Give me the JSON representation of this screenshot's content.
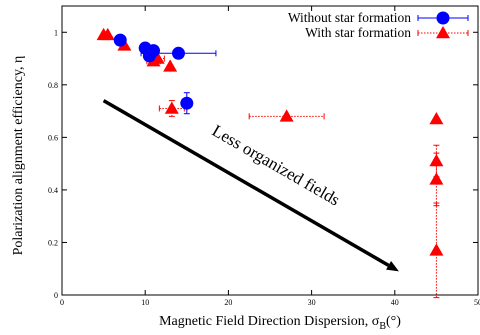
{
  "chart_data": {
    "type": "scatter",
    "xlabel": "Magnetic Field Direction Dispersion, σ",
    "xlabel_sub": "B",
    "xlabel_unit": "(°)",
    "ylabel": "Polarization alignment efficiency, η",
    "xlim": [
      0,
      50
    ],
    "ylim": [
      0,
      1.1
    ],
    "x_ticks": [
      0,
      10,
      20,
      30,
      40,
      50
    ],
    "x_tick_labels": [
      "0",
      "10",
      "20",
      "30",
      "40",
      "50"
    ],
    "y_ticks": [
      0,
      0.2,
      0.4,
      0.6,
      0.8,
      1.0
    ],
    "y_tick_labels": [
      "0",
      "0.2",
      "0.4",
      "0.6",
      "0.8",
      "1"
    ],
    "legend_position": "top-right",
    "annotation": {
      "text": "Less organized fields",
      "arrow_from": [
        5,
        0.74
      ],
      "arrow_to": [
        40.5,
        0.09
      ]
    },
    "series": [
      {
        "name": "Without star formation",
        "marker": "circle",
        "color": "#0000ff",
        "line_style": "solid",
        "points": [
          {
            "x": 7,
            "y": 0.97,
            "xerr": 0,
            "yerr": 0
          },
          {
            "x": 10,
            "y": 0.94,
            "xerr": 0.5,
            "yerr": 0
          },
          {
            "x": 11,
            "y": 0.93,
            "xerr": 0.5,
            "yerr": 0
          },
          {
            "x": 10.5,
            "y": 0.91,
            "xerr": 0.5,
            "yerr": 0
          },
          {
            "x": 14,
            "y": 0.92,
            "xerr": 4.5,
            "yerr": 0
          },
          {
            "x": 15,
            "y": 0.73,
            "xerr": 0,
            "yerr": 0.04
          }
        ]
      },
      {
        "name": "With star formation",
        "marker": "triangle",
        "color": "#ff0000",
        "line_style": "dotted",
        "points": [
          {
            "x": 5,
            "y": 0.99,
            "xerr": 0,
            "yerr": 0
          },
          {
            "x": 5.5,
            "y": 0.99,
            "xerr": 0,
            "yerr": 0
          },
          {
            "x": 7.5,
            "y": 0.95,
            "xerr": 0,
            "yerr": 0
          },
          {
            "x": 11,
            "y": 0.89,
            "xerr": 0.8,
            "yerr": 0
          },
          {
            "x": 11.5,
            "y": 0.9,
            "xerr": 0.8,
            "yerr": 0
          },
          {
            "x": 13,
            "y": 0.87,
            "xerr": 0,
            "yerr": 0
          },
          {
            "x": 13.2,
            "y": 0.71,
            "xerr": 1.5,
            "yerr": 0.03
          },
          {
            "x": 27,
            "y": 0.68,
            "xerr": 4.5,
            "yerr": 0
          },
          {
            "x": 45,
            "y": 0.67,
            "xerr": 0,
            "yerr": 0
          },
          {
            "x": 45,
            "y": 0.51,
            "xerr": 0,
            "yerr": 0.06
          },
          {
            "x": 45,
            "y": 0.44,
            "xerr": 0,
            "yerr": 0.1
          },
          {
            "x": 45,
            "y": 0.17,
            "xerr": 0,
            "yerr": 0.18
          }
        ]
      }
    ]
  }
}
